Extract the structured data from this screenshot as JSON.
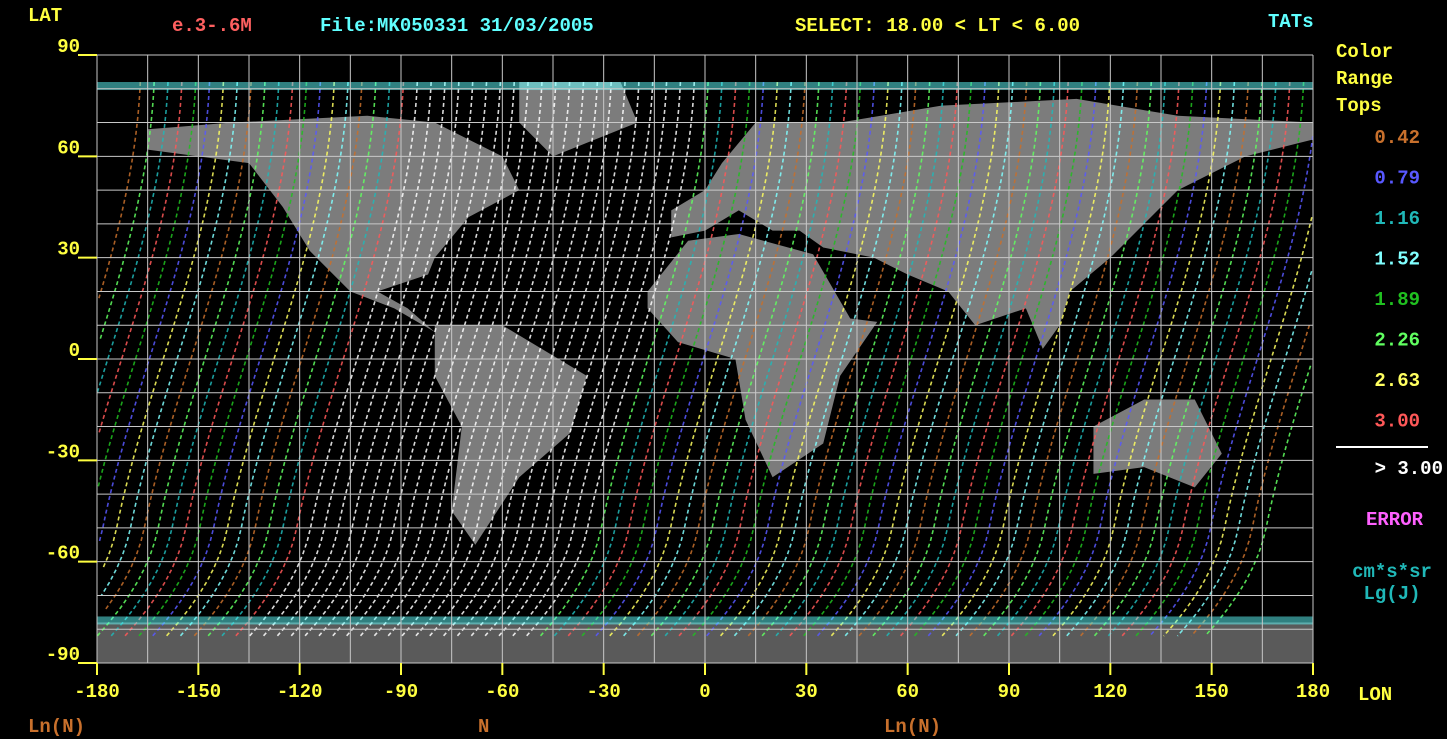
{
  "header": {
    "lat_label": "LAT",
    "energy": "e.3-.6M",
    "file": "File:MK050331 31/03/2005",
    "select": "SELECT: 18.00 < LT < 6.00",
    "tats": "TATs"
  },
  "axes": {
    "lat_ticks": [
      90,
      60,
      30,
      0,
      -30,
      -60,
      -90
    ],
    "lon_ticks": [
      -180,
      -150,
      -120,
      -90,
      -60,
      -30,
      0,
      30,
      60,
      90,
      120,
      150,
      180
    ],
    "lon_label": "LON"
  },
  "footer": {
    "left": "Ln(N)",
    "middle": "N",
    "right": "Ln(N)"
  },
  "legend": {
    "title": [
      "Color",
      "Range",
      "Tops"
    ],
    "items": [
      {
        "label": "0.42",
        "color": "#c8702c"
      },
      {
        "label": "0.79",
        "color": "#5858ff"
      },
      {
        "label": "1.16",
        "color": "#20b8b8"
      },
      {
        "label": "1.52",
        "color": "#80ffff"
      },
      {
        "label": "1.89",
        "color": "#20c020"
      },
      {
        "label": "2.26",
        "color": "#60ff60"
      },
      {
        "label": "2.63",
        "color": "#ffff60"
      },
      {
        "label": "3.00",
        "color": "#ff5858"
      }
    ],
    "over": {
      "label": "> 3.00",
      "color": "#ffffff"
    },
    "error": {
      "label": "ERROR",
      "color": "#ff60ff"
    },
    "units": [
      "cm*s*sr",
      "Lg(J)"
    ]
  }
}
